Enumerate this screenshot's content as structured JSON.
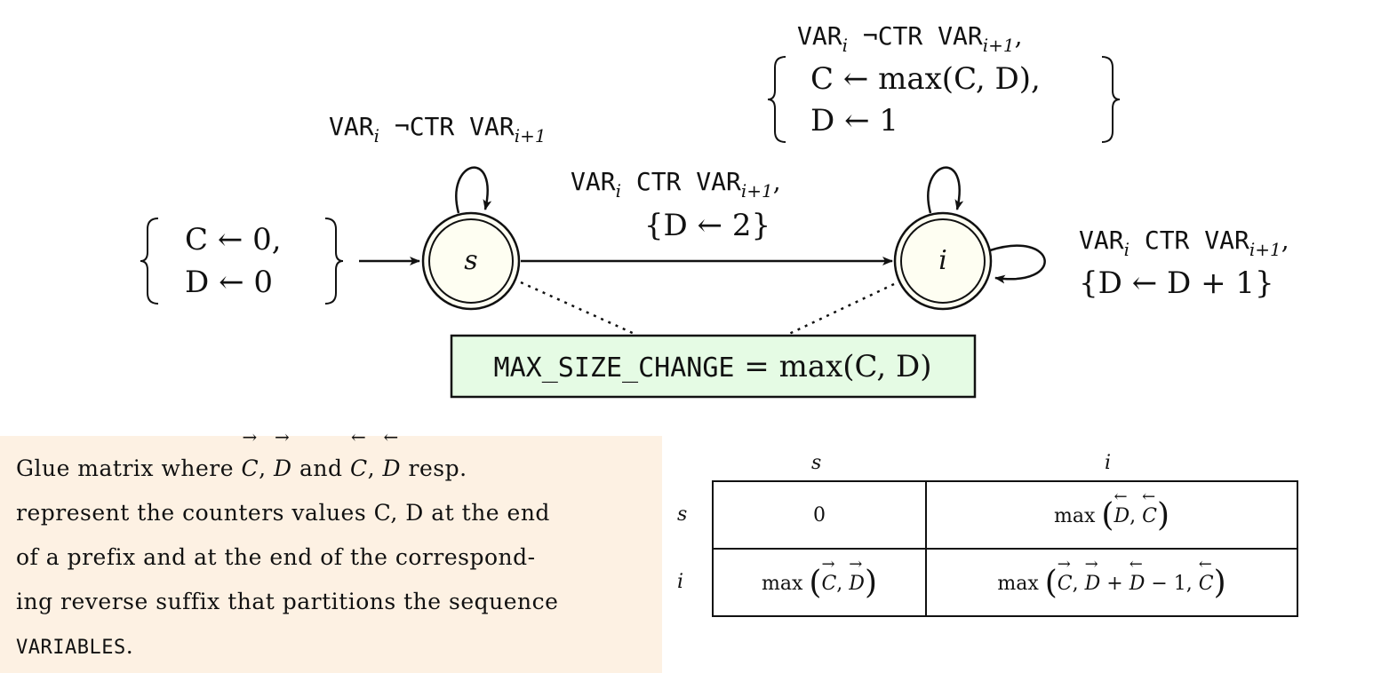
{
  "automaton": {
    "states": [
      {
        "id": "s",
        "label": "s",
        "kind": "initial-accepting"
      },
      {
        "id": "i",
        "label": "i",
        "kind": "accepting"
      }
    ],
    "initialization": {
      "line1": "C ← 0,",
      "line2": "D ← 0"
    },
    "loop_s": {
      "label": "VAR",
      "sub1": "i",
      "mid": " ¬CTR VAR",
      "sub2": "i+1"
    },
    "transition_s_i": {
      "label": "VAR",
      "sub1": "i",
      "mid": " CTR VAR",
      "sub2": "i+1",
      "end": ",",
      "update": "{D ← 2}"
    },
    "loop_i_top": {
      "label": "VAR",
      "sub1": "i",
      "mid": " ¬CTR VAR",
      "sub2": "i+1",
      "end": ",",
      "update1": "C ← max(C, D),",
      "update2": "D ← 1"
    },
    "loop_i_right": {
      "label": "VAR",
      "sub1": "i",
      "mid": " CTR VAR",
      "sub2": "i+1",
      "end": ",",
      "update": "{D ← D + 1}"
    },
    "result": {
      "name": "MAX_SIZE_CHANGE",
      "formula": " = max(C, D)"
    }
  },
  "note": {
    "l1a": "Glue matrix where ",
    "C": "C",
    "comma": ",",
    "D": "D",
    "and": " and ",
    "resp": " resp.",
    "l2": "represent the counters values C, D at the end",
    "l3": "of a prefix and at the end of the correspond-",
    "l4": "ing reverse suffix that partitions the sequence",
    "l5": "VARIABLES",
    "l5end": "."
  },
  "glue_matrix": {
    "col_headers": [
      "s",
      "i"
    ],
    "row_headers": [
      "s",
      "i"
    ],
    "cells": {
      "s_s": "0",
      "s_i": {
        "fn": "max",
        "args": [
          "D←",
          "C←"
        ]
      },
      "i_s": {
        "fn": "max",
        "args": [
          "C→",
          "D→"
        ]
      },
      "i_i": {
        "fn": "max",
        "args": [
          "C→",
          "D→ + D← − 1",
          "C←"
        ]
      }
    }
  },
  "colors": {
    "state_fill": "#fefef2",
    "result_fill": "#e5fbe4",
    "note_bg": "#fdf1e3",
    "stroke": "#111111"
  }
}
